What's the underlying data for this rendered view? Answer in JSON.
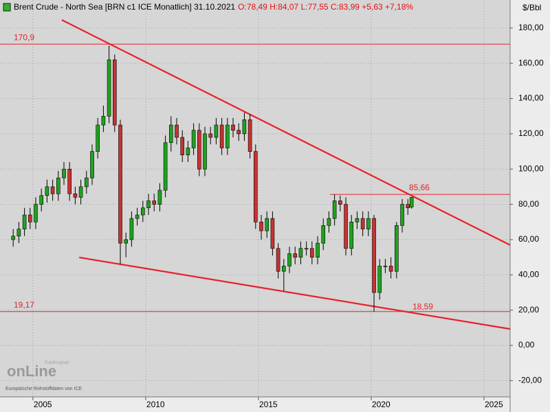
{
  "chart_data": {
    "type": "candlestick",
    "title": "Brent Crude - North Sea [BRN c1 ICE  Monatlich] 31.10.2021",
    "quote": "O:78,49 H:84,07 L:77,55 C:83,99 +5,63 +7,18%",
    "y_axis_label": "$/Bbl",
    "source": "Europäische Rohstoffdaten von ICE",
    "logo_top": "Tradesignal",
    "logo": "onLine",
    "up_color": "#1fa31f",
    "down_color": "#c83232",
    "wick_color": "#000000",
    "line_color": "#e8202a",
    "grid": true,
    "xlim": [
      2003.54,
      2026.16
    ],
    "xticks": [
      2005,
      2010,
      2015,
      2020,
      2025
    ],
    "ylim": [
      -29.2,
      195.9
    ],
    "yticks": [
      {
        "value": -20,
        "label": "-20,00"
      },
      {
        "value": 0,
        "label": "0,00"
      },
      {
        "value": 20,
        "label": "20,00"
      },
      {
        "value": 40,
        "label": "40,00"
      },
      {
        "value": 60,
        "label": "60,00"
      },
      {
        "value": 80,
        "label": "80,00"
      },
      {
        "value": 100,
        "label": "100,00"
      },
      {
        "value": 120,
        "label": "120,00"
      },
      {
        "value": 140,
        "label": "140,00"
      },
      {
        "value": 160,
        "label": "160,00"
      },
      {
        "value": 180,
        "label": "180,00"
      }
    ],
    "x": [
      2004.125,
      2004.375,
      2004.625,
      2004.875,
      2005.125,
      2005.375,
      2005.625,
      2005.875,
      2006.125,
      2006.375,
      2006.625,
      2006.875,
      2007.125,
      2007.375,
      2007.625,
      2007.875,
      2008.125,
      2008.375,
      2008.625,
      2008.875,
      2009.125,
      2009.375,
      2009.625,
      2009.875,
      2010.125,
      2010.375,
      2010.625,
      2010.875,
      2011.125,
      2011.375,
      2011.625,
      2011.875,
      2012.125,
      2012.375,
      2012.625,
      2012.875,
      2013.125,
      2013.375,
      2013.625,
      2013.875,
      2014.125,
      2014.375,
      2014.625,
      2014.875,
      2015.125,
      2015.375,
      2015.625,
      2015.875,
      2016.125,
      2016.375,
      2016.625,
      2016.875,
      2017.125,
      2017.375,
      2017.625,
      2017.875,
      2018.125,
      2018.375,
      2018.625,
      2018.875,
      2019.125,
      2019.375,
      2019.625,
      2019.875,
      2020.125,
      2020.375,
      2020.625,
      2020.875,
      2021.125,
      2021.375,
      2021.625,
      2021.79
    ],
    "open": [
      60,
      62,
      66,
      74,
      70,
      80,
      85,
      90,
      86,
      95,
      100,
      86,
      84,
      90,
      95,
      110,
      125,
      130,
      162,
      125,
      58,
      60,
      72,
      74,
      78,
      82,
      80,
      88,
      115,
      125,
      118,
      108,
      112,
      122,
      100,
      120,
      118,
      125,
      112,
      125,
      122,
      120,
      128,
      110,
      70,
      65,
      72,
      55,
      42,
      45,
      52,
      50,
      55,
      55,
      50,
      58,
      68,
      72,
      82,
      80,
      55,
      70,
      72,
      66,
      72,
      30,
      45,
      45,
      42,
      68,
      80,
      78.49
    ],
    "high": [
      66,
      70,
      78,
      78,
      84,
      89,
      94,
      94,
      99,
      104,
      104,
      90,
      94,
      99,
      114,
      129,
      136,
      170,
      165,
      128,
      64,
      76,
      78,
      82,
      86,
      86,
      92,
      119,
      130,
      129,
      122,
      116,
      126,
      126,
      124,
      124,
      129,
      129,
      129,
      129,
      126,
      132,
      131,
      114,
      74,
      76,
      76,
      58,
      49,
      56,
      56,
      59,
      59,
      59,
      62,
      72,
      76,
      85.66,
      85,
      84,
      74,
      76,
      76,
      76,
      74,
      49,
      49,
      50,
      70,
      83,
      83,
      84.07
    ],
    "low": [
      56,
      58,
      62,
      66,
      66,
      76,
      81,
      82,
      82,
      91,
      82,
      80,
      80,
      86,
      91,
      106,
      121,
      126,
      121,
      46,
      50,
      56,
      68,
      70,
      74,
      76,
      76,
      84,
      110,
      114,
      104,
      104,
      108,
      96,
      96,
      114,
      114,
      108,
      108,
      118,
      116,
      116,
      106,
      66,
      60,
      61,
      51,
      38,
      31,
      41,
      46,
      46,
      51,
      46,
      46,
      54,
      64,
      68,
      76,
      51,
      51,
      66,
      62,
      62,
      19.17,
      26,
      41,
      38,
      38,
      64,
      74,
      77.55
    ],
    "close": [
      62,
      66,
      74,
      70,
      80,
      85,
      90,
      86,
      95,
      100,
      86,
      84,
      90,
      95,
      110,
      125,
      130,
      162,
      125,
      58,
      60,
      72,
      74,
      78,
      82,
      80,
      88,
      115,
      125,
      118,
      108,
      112,
      122,
      100,
      120,
      118,
      125,
      112,
      125,
      122,
      120,
      128,
      110,
      70,
      65,
      72,
      55,
      42,
      45,
      52,
      50,
      55,
      55,
      50,
      58,
      68,
      72,
      82,
      80,
      55,
      70,
      72,
      66,
      72,
      30,
      45,
      45,
      42,
      68,
      80,
      78,
      83.99
    ],
    "hlines": [
      {
        "value": 170.9,
        "label": "170,9",
        "from": 2003.54
      },
      {
        "value": 19.17,
        "label": "19,17",
        "from": 2003.54
      },
      {
        "value": 85.66,
        "label": "85,66",
        "from": 2018.17
      }
    ],
    "trendlines": [
      {
        "x": [
          2006.28,
          2026.16
        ],
        "y": [
          184.6,
          56.9
        ]
      },
      {
        "x": [
          2007.05,
          2026.16
        ],
        "y": [
          49.9,
          9.3
        ]
      }
    ],
    "annotations": [
      {
        "x": 2021.83,
        "value": 18.59,
        "label": "18,59"
      }
    ]
  }
}
